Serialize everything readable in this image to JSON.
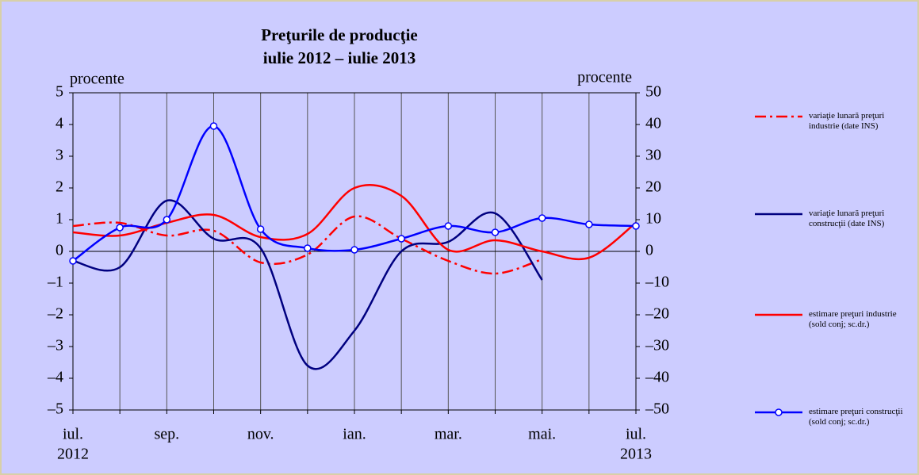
{
  "chart_data": {
    "type": "line",
    "title": "Preţurile de producţie",
    "subtitle": "iulie 2012 – iulie 2013",
    "ylabel": "procente",
    "y2label": "procente",
    "categories": [
      "iul.",
      null,
      "sep.",
      null,
      "nov.",
      null,
      "ian.",
      null,
      "mar.",
      null,
      "mai.",
      null,
      "iul."
    ],
    "category_sublabels": [
      "2012",
      null,
      null,
      null,
      null,
      null,
      null,
      null,
      null,
      null,
      null,
      null,
      "2013"
    ],
    "ylim": [
      -5,
      5
    ],
    "yticks": [
      {
        "value": -5,
        "label": "–5"
      },
      {
        "value": -4,
        "label": "–4"
      },
      {
        "value": -3,
        "label": "–3"
      },
      {
        "value": -2,
        "label": "–2"
      },
      {
        "value": -1,
        "label": "–1"
      },
      0,
      1,
      2,
      3,
      4,
      5
    ],
    "y2lim": [
      -50,
      50
    ],
    "y2ticks": [
      {
        "value": -50,
        "label": "–50"
      },
      {
        "value": -40,
        "label": "–40"
      },
      {
        "value": -30,
        "label": "–30"
      },
      {
        "value": -20,
        "label": "–20"
      },
      {
        "value": -10,
        "label": "–10"
      },
      0,
      10,
      20,
      30,
      40,
      50
    ],
    "grid": true,
    "legend": "right",
    "series": [
      {
        "name": "variaţie lunară preţuri industrie (date INS)",
        "color": "#ff0000",
        "style": "dash-dot",
        "axis": "y",
        "values": [
          0.8,
          0.9,
          0.5,
          0.65,
          -0.35,
          -0.1,
          1.1,
          0.4,
          -0.3,
          -0.7,
          -0.25,
          null,
          null
        ]
      },
      {
        "name": "variaţie lunară preţuri construcţii (date INS)",
        "color": "#000080",
        "style": "solid",
        "axis": "y",
        "values": [
          -0.3,
          -0.5,
          1.6,
          0.4,
          0.1,
          -3.6,
          -2.5,
          0.0,
          0.3,
          1.2,
          -0.9,
          null,
          null
        ]
      },
      {
        "name": "estimare preţuri industrie (sold conj; sc.dr.)",
        "color": "#ff0000",
        "style": "solid",
        "axis": "y2",
        "values": [
          6,
          5,
          9,
          11.5,
          4.5,
          5.5,
          20,
          17.5,
          0.5,
          3.5,
          0,
          -2,
          9
        ]
      },
      {
        "name": "estimare preţuri construcţii (sold conj; sc.dr.)",
        "color": "#0000ff",
        "style": "solid",
        "marker": "circle",
        "axis": "y2",
        "values": [
          -3,
          7.5,
          10,
          39.5,
          7,
          1,
          0.5,
          4,
          8,
          6,
          10.5,
          8.5,
          8
        ]
      }
    ]
  }
}
